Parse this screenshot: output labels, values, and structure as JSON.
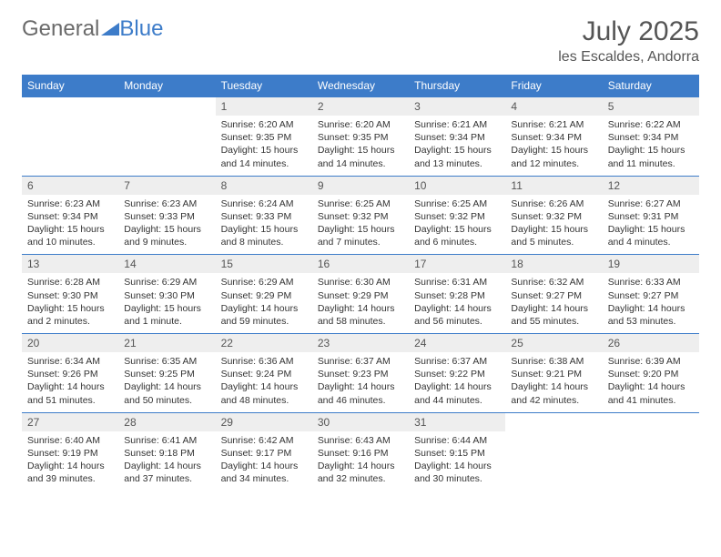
{
  "brand": {
    "general": "General",
    "blue": "Blue"
  },
  "title": "July 2025",
  "location": "les Escaldes, Andorra",
  "colors": {
    "header_bg": "#3d7cc9",
    "header_text": "#ffffff",
    "daynum_bg": "#eeeeee",
    "border": "#3d7cc9",
    "body_text": "#333333",
    "title_text": "#555555"
  },
  "day_headers": [
    "Sunday",
    "Monday",
    "Tuesday",
    "Wednesday",
    "Thursday",
    "Friday",
    "Saturday"
  ],
  "weeks": [
    [
      null,
      null,
      {
        "n": "1",
        "sr": "6:20 AM",
        "ss": "9:35 PM",
        "dl": "15 hours and 14 minutes."
      },
      {
        "n": "2",
        "sr": "6:20 AM",
        "ss": "9:35 PM",
        "dl": "15 hours and 14 minutes."
      },
      {
        "n": "3",
        "sr": "6:21 AM",
        "ss": "9:34 PM",
        "dl": "15 hours and 13 minutes."
      },
      {
        "n": "4",
        "sr": "6:21 AM",
        "ss": "9:34 PM",
        "dl": "15 hours and 12 minutes."
      },
      {
        "n": "5",
        "sr": "6:22 AM",
        "ss": "9:34 PM",
        "dl": "15 hours and 11 minutes."
      }
    ],
    [
      {
        "n": "6",
        "sr": "6:23 AM",
        "ss": "9:34 PM",
        "dl": "15 hours and 10 minutes."
      },
      {
        "n": "7",
        "sr": "6:23 AM",
        "ss": "9:33 PM",
        "dl": "15 hours and 9 minutes."
      },
      {
        "n": "8",
        "sr": "6:24 AM",
        "ss": "9:33 PM",
        "dl": "15 hours and 8 minutes."
      },
      {
        "n": "9",
        "sr": "6:25 AM",
        "ss": "9:32 PM",
        "dl": "15 hours and 7 minutes."
      },
      {
        "n": "10",
        "sr": "6:25 AM",
        "ss": "9:32 PM",
        "dl": "15 hours and 6 minutes."
      },
      {
        "n": "11",
        "sr": "6:26 AM",
        "ss": "9:32 PM",
        "dl": "15 hours and 5 minutes."
      },
      {
        "n": "12",
        "sr": "6:27 AM",
        "ss": "9:31 PM",
        "dl": "15 hours and 4 minutes."
      }
    ],
    [
      {
        "n": "13",
        "sr": "6:28 AM",
        "ss": "9:30 PM",
        "dl": "15 hours and 2 minutes."
      },
      {
        "n": "14",
        "sr": "6:29 AM",
        "ss": "9:30 PM",
        "dl": "15 hours and 1 minute."
      },
      {
        "n": "15",
        "sr": "6:29 AM",
        "ss": "9:29 PM",
        "dl": "14 hours and 59 minutes."
      },
      {
        "n": "16",
        "sr": "6:30 AM",
        "ss": "9:29 PM",
        "dl": "14 hours and 58 minutes."
      },
      {
        "n": "17",
        "sr": "6:31 AM",
        "ss": "9:28 PM",
        "dl": "14 hours and 56 minutes."
      },
      {
        "n": "18",
        "sr": "6:32 AM",
        "ss": "9:27 PM",
        "dl": "14 hours and 55 minutes."
      },
      {
        "n": "19",
        "sr": "6:33 AM",
        "ss": "9:27 PM",
        "dl": "14 hours and 53 minutes."
      }
    ],
    [
      {
        "n": "20",
        "sr": "6:34 AM",
        "ss": "9:26 PM",
        "dl": "14 hours and 51 minutes."
      },
      {
        "n": "21",
        "sr": "6:35 AM",
        "ss": "9:25 PM",
        "dl": "14 hours and 50 minutes."
      },
      {
        "n": "22",
        "sr": "6:36 AM",
        "ss": "9:24 PM",
        "dl": "14 hours and 48 minutes."
      },
      {
        "n": "23",
        "sr": "6:37 AM",
        "ss": "9:23 PM",
        "dl": "14 hours and 46 minutes."
      },
      {
        "n": "24",
        "sr": "6:37 AM",
        "ss": "9:22 PM",
        "dl": "14 hours and 44 minutes."
      },
      {
        "n": "25",
        "sr": "6:38 AM",
        "ss": "9:21 PM",
        "dl": "14 hours and 42 minutes."
      },
      {
        "n": "26",
        "sr": "6:39 AM",
        "ss": "9:20 PM",
        "dl": "14 hours and 41 minutes."
      }
    ],
    [
      {
        "n": "27",
        "sr": "6:40 AM",
        "ss": "9:19 PM",
        "dl": "14 hours and 39 minutes."
      },
      {
        "n": "28",
        "sr": "6:41 AM",
        "ss": "9:18 PM",
        "dl": "14 hours and 37 minutes."
      },
      {
        "n": "29",
        "sr": "6:42 AM",
        "ss": "9:17 PM",
        "dl": "14 hours and 34 minutes."
      },
      {
        "n": "30",
        "sr": "6:43 AM",
        "ss": "9:16 PM",
        "dl": "14 hours and 32 minutes."
      },
      {
        "n": "31",
        "sr": "6:44 AM",
        "ss": "9:15 PM",
        "dl": "14 hours and 30 minutes."
      },
      null,
      null
    ]
  ],
  "labels": {
    "sunrise": "Sunrise:",
    "sunset": "Sunset:",
    "daylight": "Daylight:"
  }
}
